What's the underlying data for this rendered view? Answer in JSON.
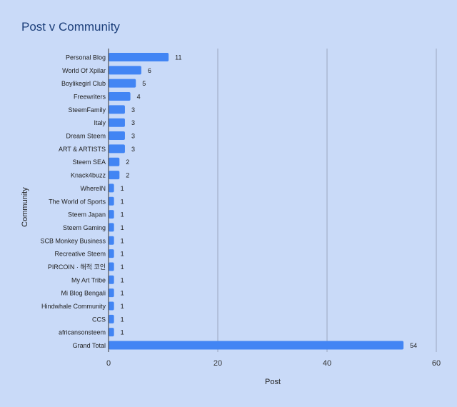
{
  "chart_data": {
    "type": "bar",
    "orientation": "horizontal",
    "title": "Post v Community",
    "xlabel": "Post",
    "ylabel": "Community",
    "xlim": [
      0,
      60
    ],
    "x_ticks": [
      "0",
      "20",
      "40",
      "60"
    ],
    "grid": true,
    "legend": "none",
    "bar_color": "#4285f4",
    "background": "#c9daf8",
    "categories": [
      "Personal Blog",
      "World Of Xpilar",
      "Boylikegirl Club",
      "Freewriters",
      "SteemFamily",
      "Italy",
      "Dream Steem",
      "ART & ARTISTS",
      "Steem SEA",
      "Knack4buzz",
      "WhereIN",
      "The World of Sports",
      "Steem Japan",
      "Steem Gaming",
      "SCB Monkey Business",
      "Recreative Steem",
      "PIRCOIN · 해적 코인",
      "My Art Tribe",
      "Mi Blog Bengali",
      "Hindwhale Community",
      "CCS",
      "africansonsteem",
      "Grand Total"
    ],
    "values": [
      11,
      6,
      5,
      4,
      3,
      3,
      3,
      3,
      2,
      2,
      1,
      1,
      1,
      1,
      1,
      1,
      1,
      1,
      1,
      1,
      1,
      1,
      54
    ],
    "data_labels": [
      "11",
      "6",
      "5",
      "4",
      "3",
      "3",
      "3",
      "3",
      "2",
      "2",
      "1",
      "1",
      "1",
      "1",
      "1",
      "1",
      "1",
      "1",
      "1",
      "1",
      "1",
      "1",
      "54"
    ]
  }
}
